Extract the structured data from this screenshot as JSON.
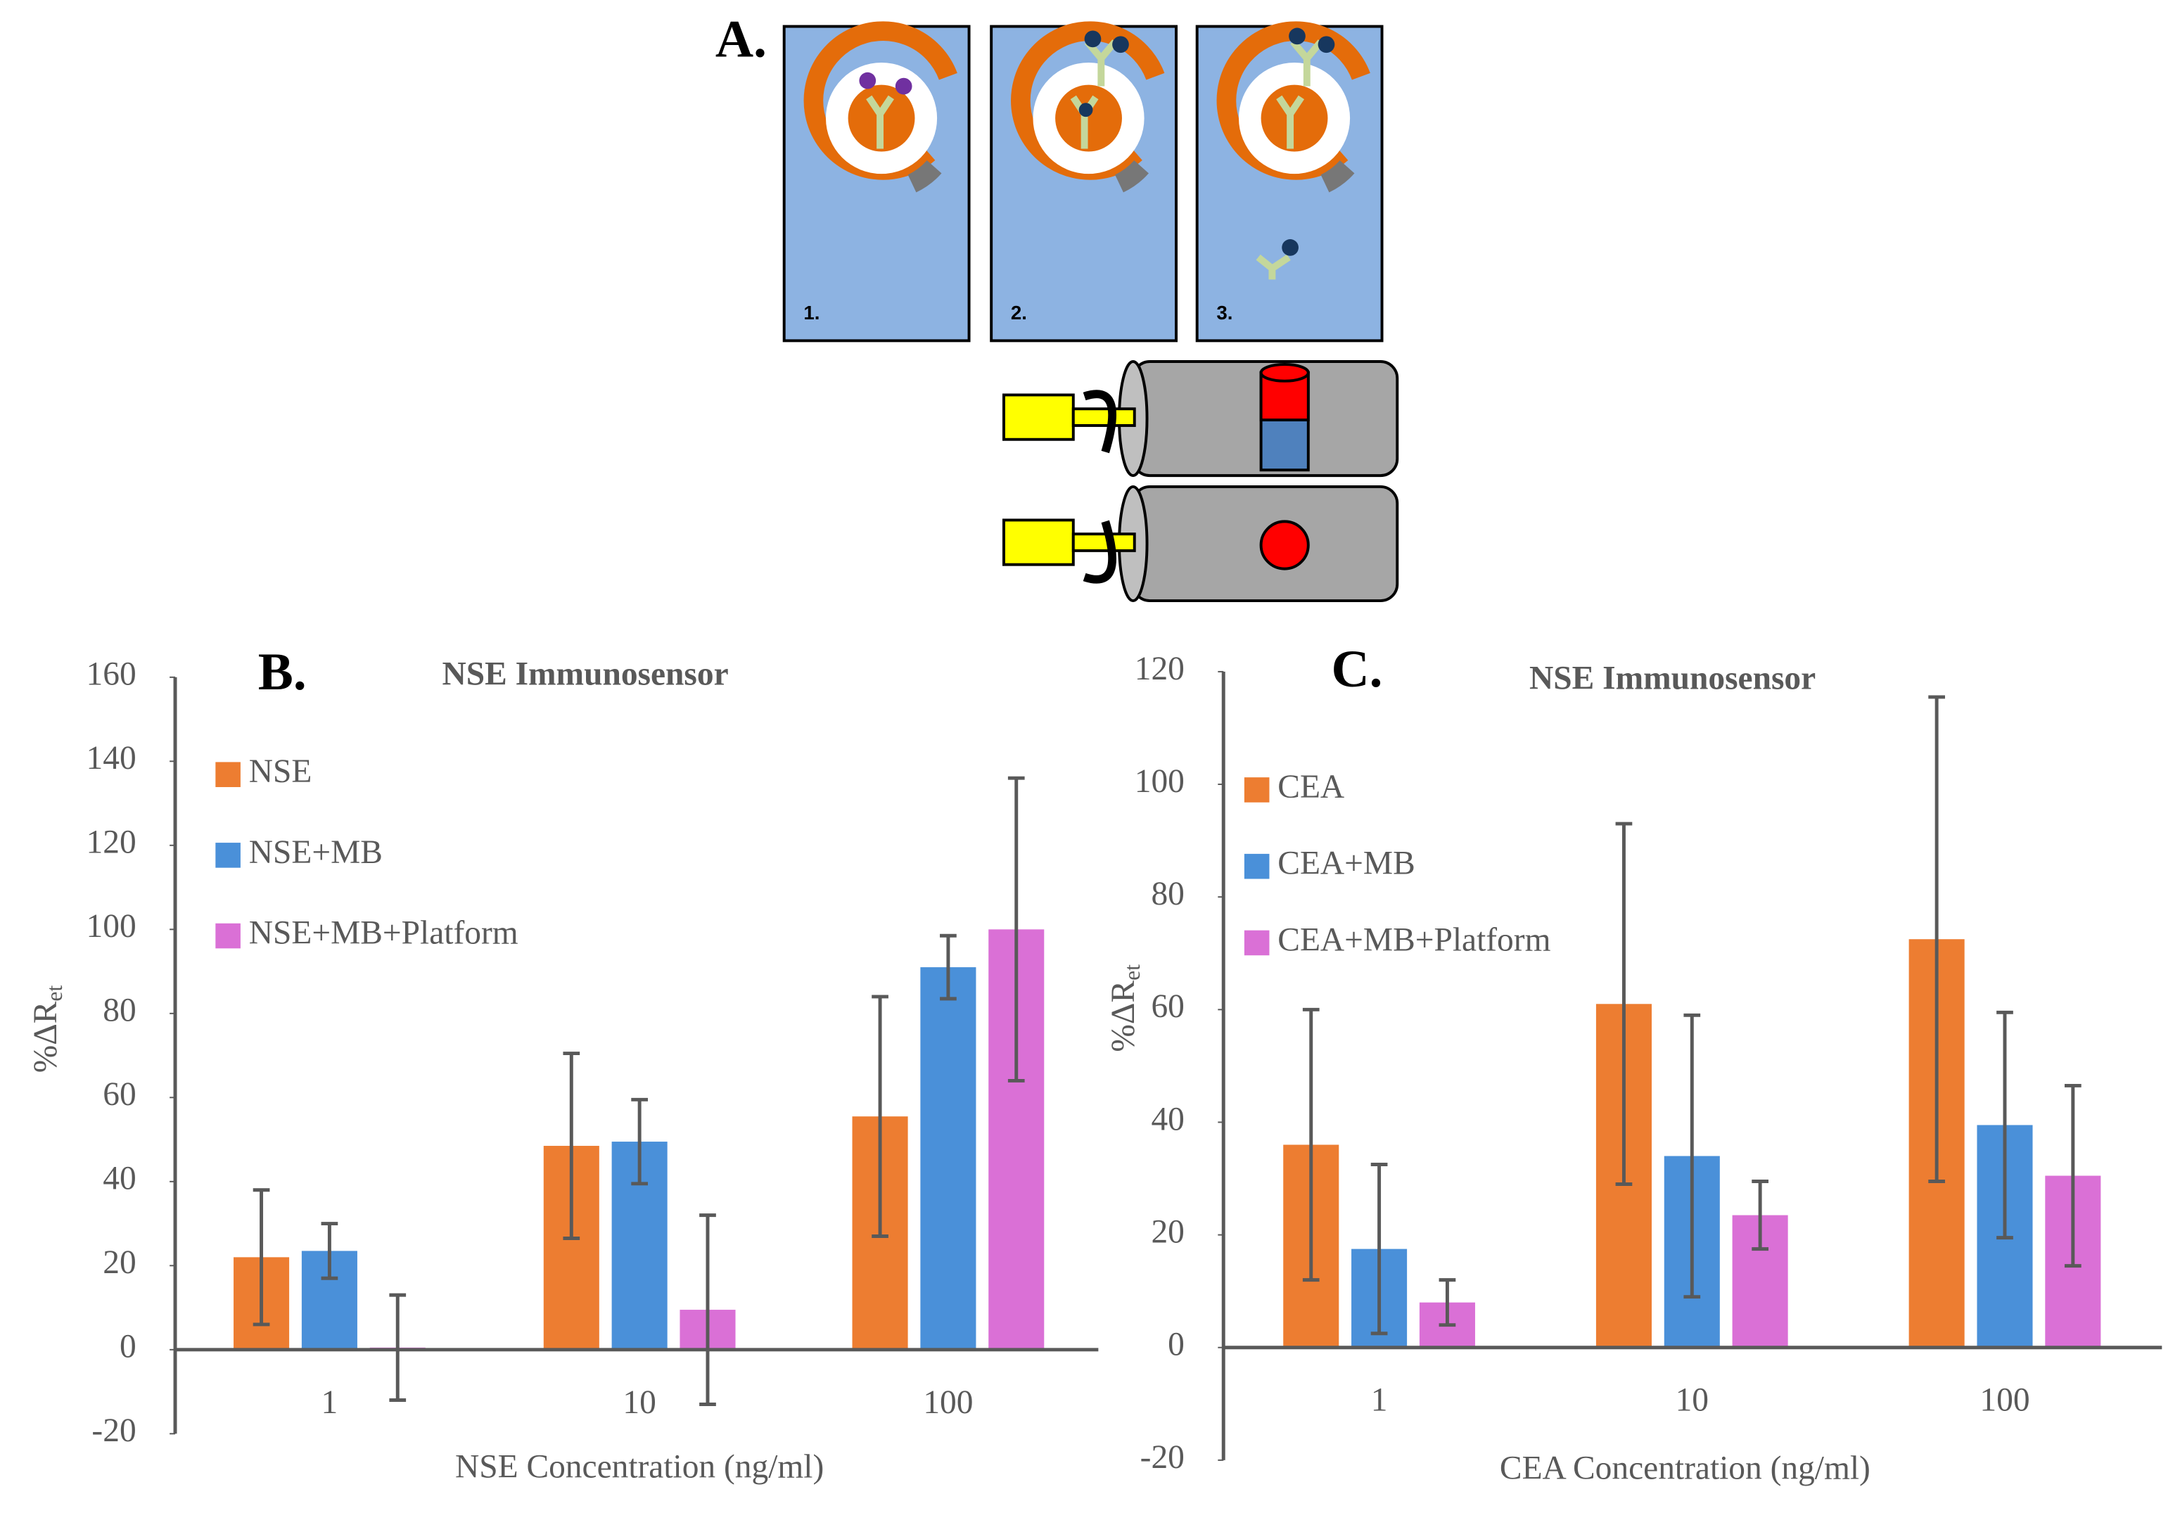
{
  "diagram": {
    "label": "A.",
    "panels": [
      "1.",
      "2.",
      "3."
    ]
  },
  "chart_data": [
    {
      "type": "bar",
      "panel_label": "B.",
      "title": "NSE Immunosensor",
      "xlabel": "NSE Concentration (ng/ml)",
      "ylabel": "%ΔR",
      "ylabel_subscript": "et",
      "categories": [
        "1",
        "10",
        "100"
      ],
      "series": [
        {
          "name": "NSE",
          "color": "#ed7d31",
          "values": [
            22,
            48.5,
            55.5
          ],
          "errors": [
            16,
            22,
            28.5
          ]
        },
        {
          "name": "NSE+MB",
          "color": "#4a90d9",
          "values": [
            23.5,
            49.5,
            91
          ],
          "errors": [
            6.5,
            10,
            7.5
          ]
        },
        {
          "name": "NSE+MB+Platform",
          "color": "#da70d6",
          "values": [
            0.5,
            9.5,
            100
          ],
          "errors": [
            12.5,
            22.5,
            36
          ]
        }
      ],
      "ylim": [
        -20,
        160
      ],
      "yticks": [
        -20,
        0,
        20,
        40,
        60,
        80,
        100,
        120,
        140,
        160
      ],
      "grid": false,
      "legend": "upper left"
    },
    {
      "type": "bar",
      "panel_label": "C.",
      "title": "NSE Immunosensor",
      "xlabel": "CEA Concentration (ng/ml)",
      "ylabel": "%ΔR",
      "ylabel_subscript": "et",
      "categories": [
        "1",
        "10",
        "100"
      ],
      "series": [
        {
          "name": "CEA",
          "color": "#ed7d31",
          "values": [
            36,
            61,
            72.5
          ],
          "errors": [
            24,
            32,
            43
          ]
        },
        {
          "name": "CEA+MB",
          "color": "#4a90d9",
          "values": [
            17.5,
            34,
            39.5
          ],
          "errors": [
            15,
            25,
            20
          ]
        },
        {
          "name": "CEA+MB+Platform",
          "color": "#da70d6",
          "values": [
            8,
            23.5,
            30.5
          ],
          "errors": [
            4,
            6,
            16
          ]
        }
      ],
      "ylim": [
        -20,
        120
      ],
      "yticks": [
        -20,
        0,
        20,
        40,
        60,
        80,
        100,
        120
      ],
      "grid": false,
      "legend": "upper left"
    }
  ]
}
